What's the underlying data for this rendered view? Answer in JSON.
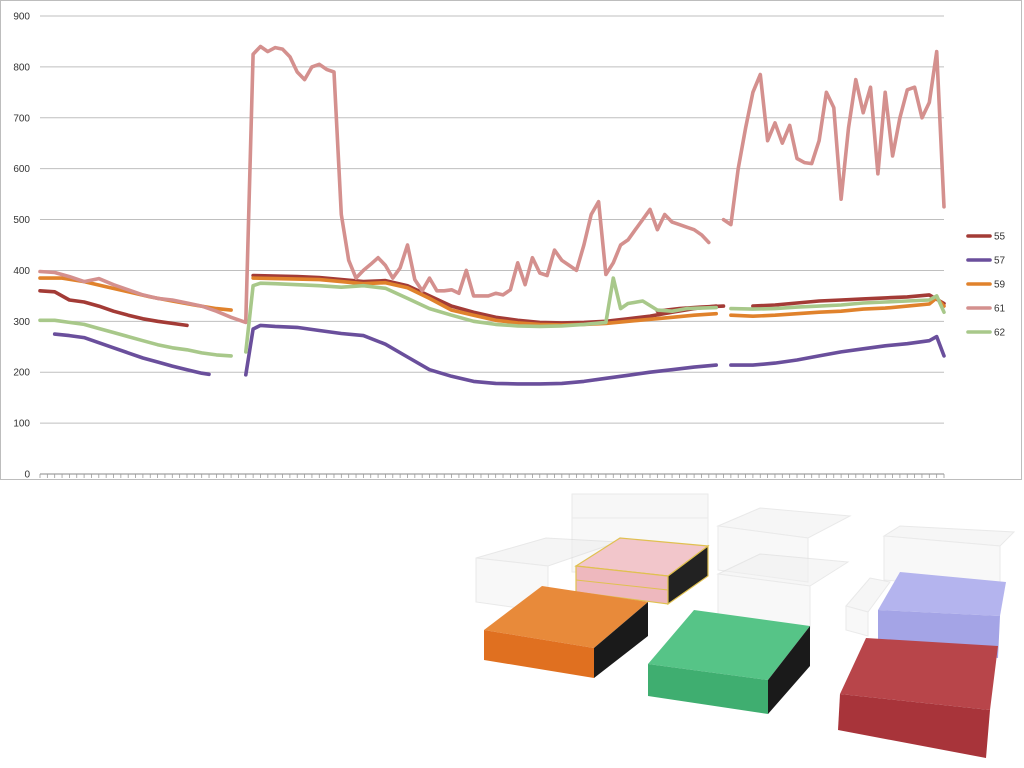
{
  "chart_data": {
    "type": "line",
    "ylim": [
      0,
      900
    ],
    "yticks": [
      0,
      100,
      200,
      300,
      400,
      500,
      600,
      700,
      800,
      900
    ],
    "grid": true,
    "legend_position": "right",
    "x_count": 123,
    "series": [
      {
        "name": "55",
        "color": "#a33b36",
        "segments": [
          {
            "x": [
              0,
              2,
              4,
              6,
              8,
              10,
              12,
              14,
              16,
              18,
              20
            ],
            "y": [
              360,
              358,
              342,
              338,
              330,
              320,
              312,
              305,
              300,
              296,
              292
            ]
          },
          {
            "x": [
              29,
              32,
              35,
              38,
              41,
              44,
              47,
              50,
              53,
              56,
              59,
              62,
              65,
              68,
              71,
              74,
              77,
              80,
              83,
              86,
              89,
              92
            ],
            "y": [
              390,
              389,
              388,
              386,
              382,
              378,
              380,
              370,
              350,
              330,
              318,
              308,
              302,
              298,
              297,
              298,
              300,
              305,
              310,
              318,
              325,
              330
            ]
          },
          {
            "x": [
              84,
              87,
              90,
              93
            ],
            "y": [
              320,
              325,
              328,
              330
            ]
          },
          {
            "x": [
              97,
              100,
              103,
              106,
              109,
              112,
              115,
              118,
              121,
              123
            ],
            "y": [
              330,
              332,
              336,
              340,
              342,
              344,
              346,
              348,
              352,
              335
            ]
          }
        ]
      },
      {
        "name": "57",
        "color": "#6a4f9c",
        "segments": [
          {
            "x": [
              2,
              4,
              6,
              8,
              10,
              12,
              14,
              16,
              18,
              20,
              22,
              23
            ],
            "y": [
              275,
              272,
              268,
              258,
              248,
              238,
              228,
              220,
              212,
              205,
              198,
              196
            ]
          },
          {
            "x": [
              28,
              29,
              30,
              32,
              35,
              38,
              41,
              44,
              47,
              50,
              53,
              56,
              59,
              62,
              65,
              68,
              71,
              74,
              77,
              80,
              83,
              86,
              89,
              92
            ],
            "y": [
              195,
              285,
              292,
              290,
              288,
              282,
              276,
              272,
              255,
              230,
              205,
              192,
              182,
              178,
              177,
              177,
              178,
              182,
              188,
              194,
              200,
              205,
              210,
              214
            ]
          },
          {
            "x": [
              94,
              97,
              100,
              103,
              106,
              109,
              112,
              115,
              118,
              121,
              122,
              123
            ],
            "y": [
              214,
              214,
              218,
              224,
              232,
              240,
              246,
              252,
              256,
              262,
              270,
              232
            ]
          }
        ]
      },
      {
        "name": "59",
        "color": "#e0822c",
        "segments": [
          {
            "x": [
              0,
              3,
              6,
              9,
              12,
              15,
              18,
              21,
              24,
              26
            ],
            "y": [
              385,
              385,
              378,
              368,
              358,
              348,
              340,
              332,
              325,
              322
            ]
          },
          {
            "x": [
              29,
              32,
              35,
              38,
              41,
              44,
              47,
              50,
              53,
              56,
              59,
              62,
              65,
              68,
              71,
              74,
              77,
              80,
              83,
              86,
              89,
              92
            ],
            "y": [
              385,
              384,
              383,
              382,
              378,
              374,
              376,
              366,
              345,
              322,
              312,
              302,
              297,
              294,
              293,
              294,
              296,
              300,
              304,
              308,
              312,
              315
            ]
          },
          {
            "x": [
              94,
              97,
              100,
              103,
              106,
              109,
              112,
              115,
              118,
              121,
              122,
              123
            ],
            "y": [
              312,
              310,
              312,
              315,
              318,
              320,
              324,
              326,
              330,
              334,
              346,
              330
            ]
          }
        ]
      },
      {
        "name": "61",
        "color": "#d4908e",
        "segments": [
          {
            "x": [
              0,
              2,
              4,
              6,
              8,
              10,
              12,
              14,
              16,
              18,
              20,
              22,
              24,
              26,
              28
            ],
            "y": [
              398,
              396,
              388,
              378,
              384,
              372,
              362,
              352,
              345,
              342,
              336,
              330,
              320,
              308,
              298
            ]
          },
          {
            "x": [
              28,
              29,
              30,
              31,
              32,
              33,
              34,
              35,
              36,
              37,
              38,
              39,
              40,
              41,
              42,
              43,
              44,
              45,
              46,
              47,
              48,
              49,
              50,
              51,
              52,
              53,
              54,
              55,
              56,
              57,
              58,
              59,
              60,
              61,
              62,
              63,
              64,
              65,
              66,
              67,
              68,
              69,
              70,
              71,
              72,
              73,
              74,
              75,
              76,
              77,
              78,
              79,
              80,
              81,
              82,
              83,
              84,
              85,
              86,
              87,
              88,
              89,
              90,
              91
            ],
            "y": [
              300,
              825,
              840,
              830,
              838,
              835,
              820,
              790,
              775,
              800,
              805,
              795,
              790,
              510,
              420,
              385,
              400,
              412,
              425,
              410,
              385,
              405,
              450,
              382,
              360,
              385,
              360,
              360,
              362,
              355,
              400,
              350,
              350,
              350,
              355,
              352,
              362,
              415,
              372,
              425,
              395,
              390,
              440,
              420,
              410,
              400,
              450,
              510,
              535,
              392,
              415,
              450,
              460,
              480,
              500,
              520,
              480,
              510,
              495,
              490,
              485,
              480,
              470,
              455
            ]
          },
          {
            "x": [
              93,
              94,
              95,
              96,
              97,
              98,
              99,
              100,
              101,
              102,
              103,
              104,
              105,
              106,
              107,
              108,
              109,
              110,
              111,
              112,
              113,
              114,
              115,
              116,
              117,
              118,
              119,
              120,
              121,
              122,
              123
            ],
            "y": [
              500,
              490,
              600,
              680,
              750,
              785,
              655,
              690,
              650,
              685,
              620,
              612,
              610,
              655,
              750,
              720,
              540,
              680,
              775,
              710,
              760,
              590,
              750,
              625,
              700,
              755,
              760,
              700,
              730,
              830,
              525
            ]
          }
        ]
      },
      {
        "name": "62",
        "color": "#a8c88a",
        "segments": [
          {
            "x": [
              0,
              2,
              4,
              6,
              8,
              10,
              12,
              14,
              16,
              18,
              20,
              22,
              24,
              26
            ],
            "y": [
              302,
              302,
              298,
              294,
              286,
              278,
              270,
              262,
              254,
              248,
              244,
              238,
              234,
              232
            ]
          },
          {
            "x": [
              28,
              29,
              30,
              32,
              35,
              38,
              41,
              44,
              47,
              50,
              53,
              56,
              59,
              62,
              65,
              68,
              71,
              74,
              77,
              78,
              79,
              80,
              82,
              84,
              86,
              88,
              90,
              92
            ],
            "y": [
              240,
              370,
              375,
              374,
              372,
              370,
              367,
              370,
              365,
              345,
              325,
              312,
              300,
              294,
              291,
              290,
              291,
              294,
              298,
              385,
              325,
              335,
              340,
              322,
              320,
              325,
              326,
              327
            ]
          },
          {
            "x": [
              94,
              97,
              100,
              103,
              106,
              109,
              112,
              115,
              118,
              121,
              122,
              123
            ],
            "y": [
              325,
              324,
              325,
              328,
              330,
              332,
              336,
              338,
              340,
              342,
              350,
              318
            ]
          }
        ]
      }
    ]
  },
  "blocks": {
    "orange": "#e07020",
    "green": "#3fae70",
    "lavender": "#a8a8e8",
    "red": "#a8343a",
    "pink_outline": "#e0c050"
  }
}
